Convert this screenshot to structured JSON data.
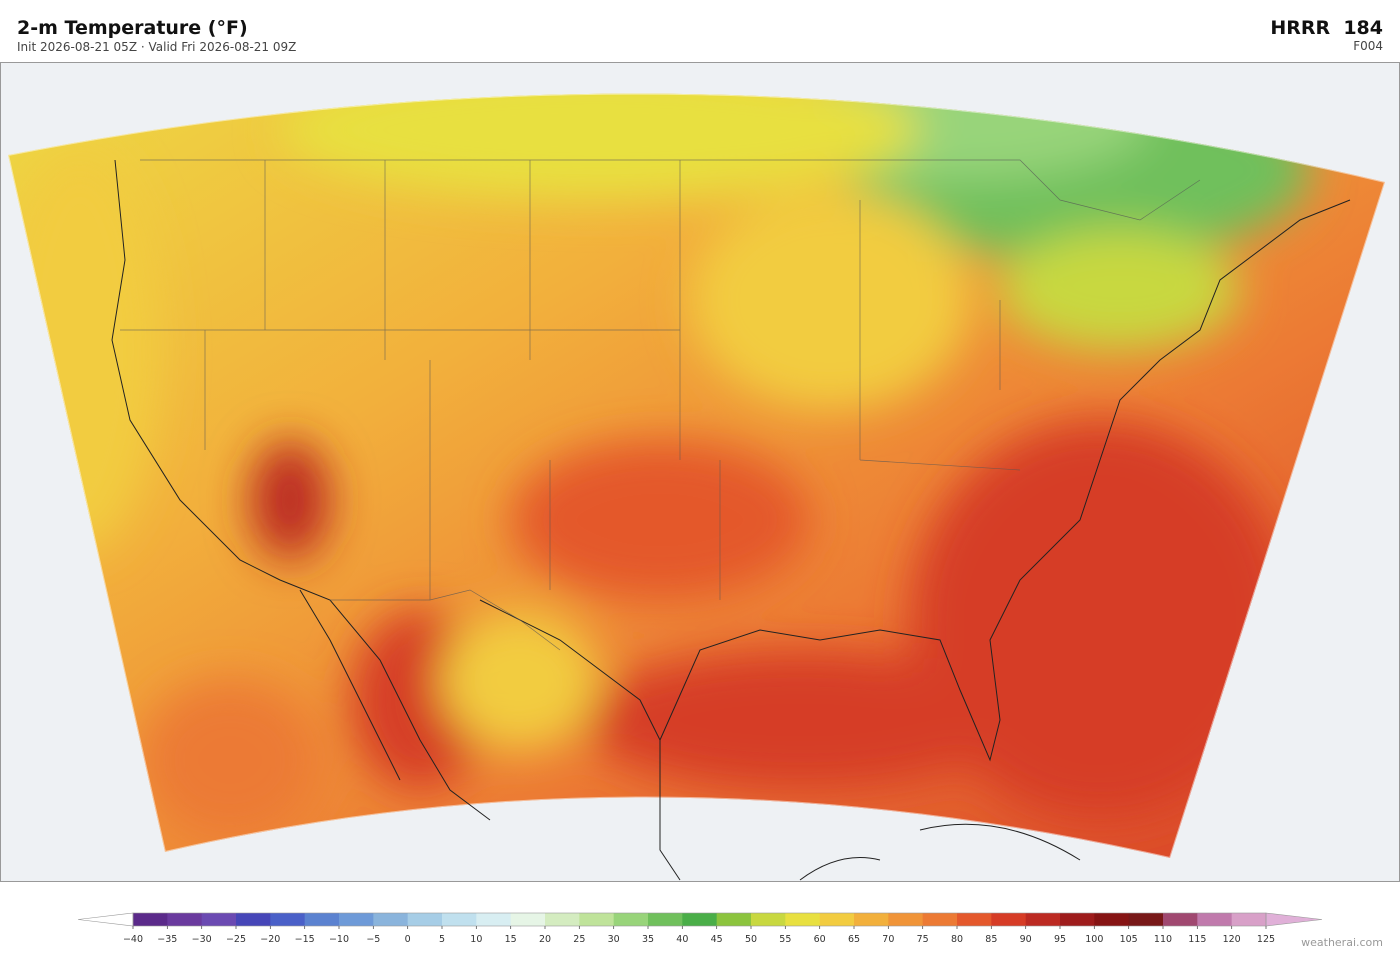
{
  "header": {
    "title": "2-m Temperature  (°F)",
    "subtitle": "Init 2026-08-21 05Z  ·  Valid Fri 2026-08-21 09Z",
    "model": "HRRR  184",
    "forecast_hour": "F004"
  },
  "colorbar": {
    "ticks": [
      {
        "value": -40,
        "label": "−40"
      },
      {
        "value": -35,
        "label": "−35"
      },
      {
        "value": -30,
        "label": "−30"
      },
      {
        "value": -25,
        "label": "−25"
      },
      {
        "value": -20,
        "label": "−20"
      },
      {
        "value": -15,
        "label": "−15"
      },
      {
        "value": -10,
        "label": "−10"
      },
      {
        "value": -5,
        "label": "−5"
      },
      0,
      5,
      10,
      15,
      20,
      25,
      30,
      35,
      40,
      45,
      50,
      55,
      60,
      65,
      70,
      75,
      80,
      85,
      90,
      95,
      100,
      105,
      110,
      115,
      120,
      125
    ],
    "colors": [
      "#5b2a8a",
      "#6a3a9e",
      "#6b4ab2",
      "#4646b8",
      "#4a60c8",
      "#5b82d0",
      "#6e9ad8",
      "#8ab4dc",
      "#a6cde6",
      "#c0e0ee",
      "#d8eef2",
      "#e6f5e6",
      "#d4ecc0",
      "#bfe39a",
      "#98d47a",
      "#70c05c",
      "#4aae48",
      "#8cc43e",
      "#c8d840",
      "#e8e040",
      "#f2cc40",
      "#f2b03c",
      "#f09438",
      "#ec7a34",
      "#e4582c",
      "#d63c26",
      "#bc2a22",
      "#9e1c1c",
      "#861414",
      "#781818",
      "#a04870",
      "#c07aac",
      "#d8a0c8"
    ],
    "extend_colors": [
      "#ffffff",
      "#e0b0d8"
    ]
  },
  "credit": "weatherai.com"
}
